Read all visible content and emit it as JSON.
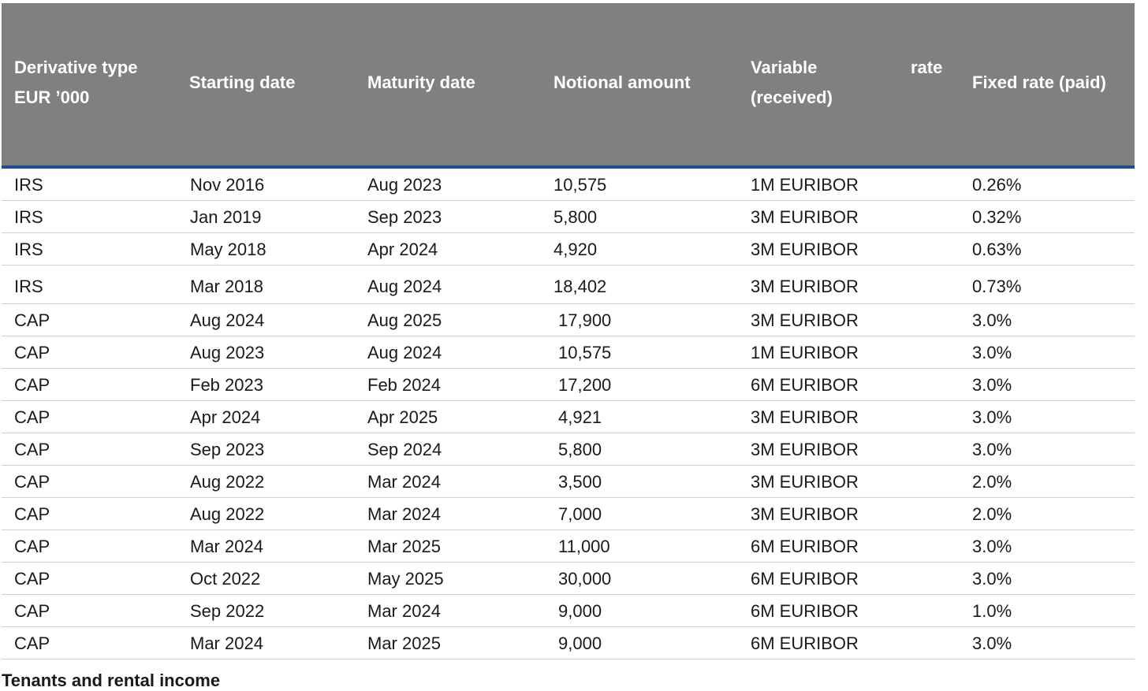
{
  "table": {
    "headers": {
      "type_line1": "Derivative type",
      "type_line2": "EUR ’000",
      "start": "Starting date",
      "maturity": "Maturity date",
      "notional": "Notional amount",
      "variable_line1": "Variable",
      "variable_rate": "rate",
      "variable_line2": "(received)",
      "fixed": "Fixed rate (paid)"
    },
    "rows": [
      {
        "type": "IRS",
        "start": "Nov 2016",
        "maturity": "Aug 2023",
        "notional": "10,575",
        "variable": "1M EURIBOR",
        "fixed": "0.26%"
      },
      {
        "type": "IRS",
        "start": "Jan 2019",
        "maturity": "Sep 2023",
        "notional": "5,800",
        "variable": "3M EURIBOR",
        "fixed": "0.32%"
      },
      {
        "type": "IRS",
        "start": "May 2018",
        "maturity": "Apr 2024",
        "notional": "4,920",
        "variable": "3M EURIBOR",
        "fixed": "0.63%"
      },
      {
        "type": "IRS",
        "start": "Mar 2018",
        "maturity": "Aug 2024",
        "notional": "18,402",
        "variable": "3M EURIBOR",
        "fixed": "0.73%"
      },
      {
        "type": "CAP",
        "start": "Aug 2024",
        "maturity": "Aug 2025",
        "notional": "17,900",
        "variable": "3M EURIBOR",
        "fixed": "3.0%"
      },
      {
        "type": "CAP",
        "start": "Aug 2023",
        "maturity": "Aug 2024",
        "notional": "10,575",
        "variable": "1M EURIBOR",
        "fixed": "3.0%"
      },
      {
        "type": "CAP",
        "start": "Feb 2023",
        "maturity": "Feb 2024",
        "notional": "17,200",
        "variable": "6M EURIBOR",
        "fixed": "3.0%"
      },
      {
        "type": "CAP",
        "start": "Apr 2024",
        "maturity": "Apr 2025",
        "notional": "4,921",
        "variable": "3M EURIBOR",
        "fixed": "3.0%"
      },
      {
        "type": "CAP",
        "start": "Sep 2023",
        "maturity": "Sep 2024",
        "notional": "5,800",
        "variable": "3M EURIBOR",
        "fixed": "3.0%"
      },
      {
        "type": "CAP",
        "start": "Aug 2022",
        "maturity": "Mar 2024",
        "notional": "3,500",
        "variable": "3M EURIBOR",
        "fixed": "2.0%"
      },
      {
        "type": "CAP",
        "start": "Aug 2022",
        "maturity": "Mar 2024",
        "notional": "7,000",
        "variable": "3M EURIBOR",
        "fixed": "2.0%"
      },
      {
        "type": "CAP",
        "start": "Mar 2024",
        "maturity": "Mar 2025",
        "notional": "11,000",
        "variable": "6M EURIBOR",
        "fixed": "3.0%"
      },
      {
        "type": "CAP",
        "start": "Oct 2022",
        "maturity": "May 2025",
        "notional": "30,000",
        "variable": "6M EURIBOR",
        "fixed": "3.0%"
      },
      {
        "type": "CAP",
        "start": "Sep 2022",
        "maturity": "Mar 2024",
        "notional": "9,000",
        "variable": "6M EURIBOR",
        "fixed": "1.0%"
      },
      {
        "type": "CAP",
        "start": "Mar 2024",
        "maturity": "Mar 2025",
        "notional": "9,000",
        "variable": "6M EURIBOR",
        "fixed": "3.0%"
      }
    ]
  },
  "section": {
    "title": "Tenants and rental income"
  },
  "colors": {
    "header_bg": "#808080",
    "header_rule": "#1f4e8c",
    "row_rule": "#cfcfcf"
  }
}
